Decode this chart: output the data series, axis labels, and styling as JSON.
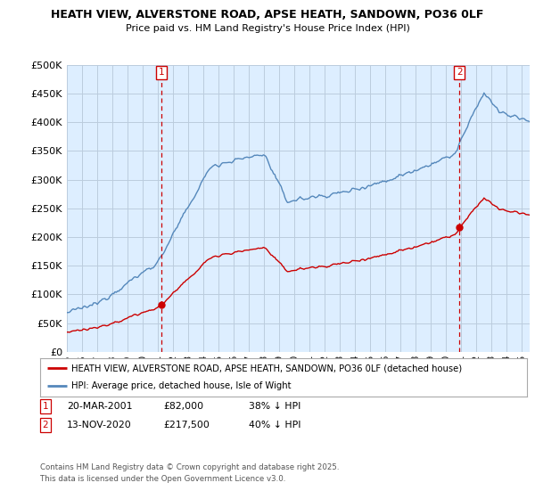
{
  "title_line1": "HEATH VIEW, ALVERSTONE ROAD, APSE HEATH, SANDOWN, PO36 0LF",
  "title_line2": "Price paid vs. HM Land Registry's House Price Index (HPI)",
  "ylim": [
    0,
    500000
  ],
  "yticks": [
    0,
    50000,
    100000,
    150000,
    200000,
    250000,
    300000,
    350000,
    400000,
    450000,
    500000
  ],
  "ytick_labels": [
    "£0",
    "£50K",
    "£100K",
    "£150K",
    "£200K",
    "£250K",
    "£300K",
    "£350K",
    "£400K",
    "£450K",
    "£500K"
  ],
  "xlim_start": 1995.0,
  "xlim_end": 2025.5,
  "sale1_x": 2001.22,
  "sale1_y": 82000,
  "sale1_label": "1",
  "sale2_x": 2020.87,
  "sale2_y": 217500,
  "sale2_label": "2",
  "legend_line1": "HEATH VIEW, ALVERSTONE ROAD, APSE HEATH, SANDOWN, PO36 0LF (detached house)",
  "legend_line2": "HPI: Average price, detached house, Isle of Wight",
  "note1_label": "1",
  "note1_date": "20-MAR-2001",
  "note1_price": "£82,000",
  "note1_hpi": "38% ↓ HPI",
  "note2_label": "2",
  "note2_date": "13-NOV-2020",
  "note2_price": "£217,500",
  "note2_hpi": "40% ↓ HPI",
  "footer": "Contains HM Land Registry data © Crown copyright and database right 2025.\nThis data is licensed under the Open Government Licence v3.0.",
  "color_red": "#cc0000",
  "color_blue": "#5588bb",
  "bg_plot": "#ddeeff",
  "background": "#ffffff",
  "grid_color": "#bbccdd"
}
